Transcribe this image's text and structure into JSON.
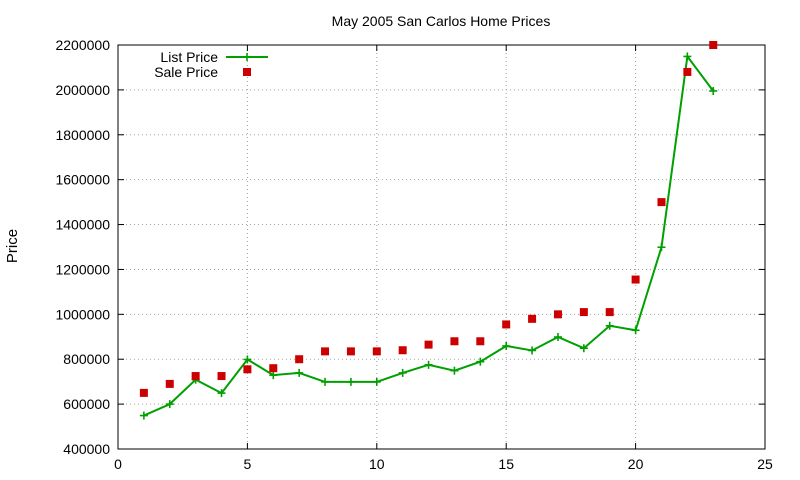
{
  "chart_data": {
    "type": "line",
    "title": "May 2005 San Carlos Home Prices",
    "xlabel": "",
    "ylabel": "Price",
    "xlim": [
      0,
      25
    ],
    "ylim": [
      400000,
      2200000
    ],
    "x_ticks": [
      0,
      5,
      10,
      15,
      20,
      25
    ],
    "y_ticks": [
      400000,
      600000,
      800000,
      1000000,
      1200000,
      1400000,
      1600000,
      1800000,
      2000000,
      2200000
    ],
    "grid": true,
    "legend_position": "top-left",
    "series": [
      {
        "name": "List Price",
        "style": "linespoints",
        "marker": "plus",
        "color": "#00a000",
        "x": [
          1,
          2,
          3,
          4,
          5,
          6,
          7,
          8,
          9,
          10,
          11,
          12,
          13,
          14,
          15,
          16,
          17,
          18,
          19,
          20,
          21,
          22,
          23
        ],
        "values": [
          549000,
          600000,
          709000,
          649000,
          799000,
          729000,
          739000,
          699000,
          699000,
          699000,
          739000,
          775000,
          749000,
          789000,
          859000,
          839000,
          899000,
          849000,
          949000,
          929000,
          1299000,
          2149000,
          1995000
        ]
      },
      {
        "name": "Sale Price",
        "style": "points",
        "marker": "square",
        "color": "#cc0000",
        "x": [
          1,
          2,
          3,
          4,
          5,
          6,
          7,
          8,
          9,
          10,
          11,
          12,
          13,
          14,
          15,
          16,
          17,
          18,
          19,
          20,
          21,
          22,
          23
        ],
        "values": [
          650000,
          690000,
          725000,
          725000,
          755000,
          760000,
          800000,
          835000,
          835000,
          835000,
          840000,
          865000,
          880000,
          880000,
          955000,
          980000,
          1000000,
          1010000,
          1010000,
          1155000,
          1500000,
          2080000,
          2200000
        ]
      }
    ]
  }
}
